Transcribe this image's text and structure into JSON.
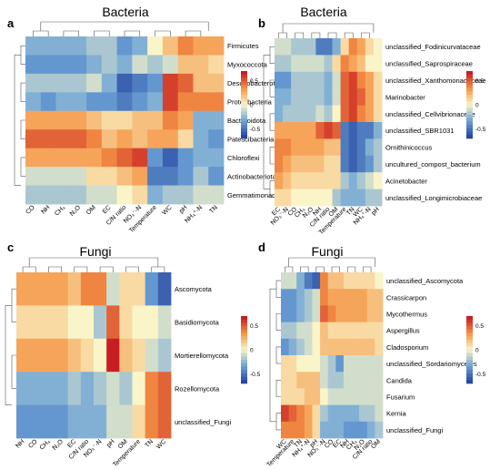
{
  "chart_data": [
    {
      "type": "heatmap",
      "panel": "a",
      "title": "Bacteria",
      "rows": [
        "Firmicutes",
        "Myxococcota",
        "Desulfobacterota",
        "Proteobacteria",
        "Bacteroidota",
        "Patescibacteria",
        "Chloroflexi",
        "Actinobacteriota",
        "Gemmatimonadota"
      ],
      "columns": [
        "CO",
        "NH",
        "CH₄",
        "N₂O",
        "OM",
        "EC",
        "C/N ratio",
        "NO₃⁻-N",
        "Temperature",
        "WC",
        "pH",
        "NH₄⁺-N",
        "TN"
      ],
      "values": [
        [
          -0.3,
          -0.3,
          -0.3,
          -0.3,
          -0.2,
          -0.2,
          -0.4,
          -0.3,
          0.0,
          0.2,
          0.4,
          0.3,
          0.3
        ],
        [
          -0.4,
          -0.4,
          -0.4,
          -0.4,
          -0.3,
          -0.2,
          -0.3,
          -0.1,
          -0.2,
          -0.1,
          0.2,
          0.2,
          0.1
        ],
        [
          -0.2,
          -0.2,
          -0.2,
          -0.2,
          -0.1,
          -0.3,
          -0.6,
          -0.5,
          -0.4,
          0.6,
          0.5,
          0.2,
          0.2
        ],
        [
          -0.3,
          -0.4,
          -0.3,
          -0.3,
          -0.4,
          -0.4,
          -0.5,
          -0.4,
          -0.3,
          0.6,
          0.4,
          0.4,
          0.4
        ],
        [
          0.3,
          0.3,
          0.3,
          0.3,
          0.2,
          0.1,
          0.1,
          0.2,
          0.2,
          0.4,
          0.3,
          -0.3,
          -0.3
        ],
        [
          0.5,
          0.5,
          0.5,
          0.5,
          0.4,
          0.2,
          0.3,
          0.2,
          0.3,
          0.3,
          0.1,
          -0.3,
          -0.4
        ],
        [
          0.3,
          0.3,
          0.3,
          0.3,
          0.3,
          0.4,
          0.5,
          0.6,
          -0.4,
          -0.6,
          -0.4,
          -0.3,
          -0.3
        ],
        [
          -0.1,
          -0.1,
          -0.1,
          -0.1,
          0.1,
          0.1,
          0.2,
          0.3,
          -0.5,
          -0.5,
          -0.4,
          -0.2,
          -0.4
        ],
        [
          -0.2,
          -0.2,
          -0.2,
          -0.2,
          -0.1,
          -0.1,
          0.0,
          0.1,
          -0.3,
          -0.2,
          -0.2,
          -0.1,
          -0.1
        ]
      ],
      "colorbar_ticks": [
        0.5,
        0,
        -0.5
      ]
    },
    {
      "type": "heatmap",
      "panel": "b",
      "title": "Bacteria",
      "rows": [
        "unclassified_Fodinicurvataceae",
        "unclassified_Saprospiraceae",
        "unclassified_Xanthomonadaceae",
        "Marinobacter",
        "unclassified_Cellvibrionaceae",
        "unclassified_SBR1031",
        "Ornithinicoccus",
        "uncultured_compost_bacterium",
        "Acinetobacter",
        "unclassified_Longimicrobiaceae"
      ],
      "columns": [
        "EC",
        "NO₃⁻-N",
        "CO",
        "CH₄",
        "N₂O",
        "NH",
        "C/N ratio",
        "OM",
        "Temperature",
        "TN",
        "WC",
        "NH₄⁺-N",
        "pH"
      ],
      "values": [
        [
          -0.1,
          -0.1,
          -0.2,
          -0.2,
          -0.2,
          -0.5,
          -0.5,
          -0.3,
          0.1,
          0.4,
          0.3,
          0.1,
          0.0
        ],
        [
          -0.2,
          -0.2,
          -0.1,
          -0.1,
          -0.1,
          -0.1,
          -0.2,
          0.1,
          0.4,
          0.3,
          0.2,
          0.0,
          0.0
        ],
        [
          -0.4,
          -0.4,
          -0.2,
          -0.2,
          -0.2,
          -0.2,
          -0.3,
          -0.1,
          0.5,
          0.6,
          0.4,
          0.3,
          0.1
        ],
        [
          -0.3,
          -0.3,
          -0.2,
          -0.2,
          -0.2,
          -0.2,
          -0.3,
          -0.1,
          0.5,
          0.6,
          0.5,
          0.3,
          0.1
        ],
        [
          -0.3,
          -0.2,
          -0.2,
          -0.2,
          -0.2,
          -0.1,
          -0.2,
          0.0,
          0.5,
          0.6,
          0.4,
          0.3,
          0.1
        ],
        [
          0.3,
          0.3,
          0.3,
          0.3,
          0.3,
          0.5,
          0.6,
          0.5,
          -0.5,
          -0.6,
          -0.5,
          -0.5,
          -0.3
        ],
        [
          0.4,
          0.4,
          0.3,
          0.3,
          0.3,
          0.3,
          0.2,
          0.2,
          -0.5,
          -0.6,
          -0.5,
          -0.3,
          -0.2
        ],
        [
          0.4,
          0.3,
          0.2,
          0.2,
          0.2,
          0.2,
          0.1,
          0.1,
          -0.5,
          -0.6,
          -0.5,
          -0.4,
          -0.2
        ],
        [
          0.3,
          0.2,
          0.1,
          0.1,
          0.1,
          0.1,
          0.1,
          0.1,
          -0.2,
          -0.3,
          -0.2,
          -0.1,
          0.0
        ],
        [
          0.1,
          0.1,
          0.0,
          0.0,
          0.0,
          0.0,
          0.0,
          -0.2,
          -0.3,
          -0.3,
          -0.3,
          -0.2,
          -0.2
        ]
      ],
      "colorbar_ticks": [
        0.5,
        0,
        -0.5
      ]
    },
    {
      "type": "heatmap",
      "panel": "c",
      "title": "Fungi",
      "rows": [
        "Ascomycota",
        "Basidiomycota",
        "Mortierellomycota",
        "Rozellomycota",
        "unclassified_Fungi"
      ],
      "columns": [
        "NH",
        "CO",
        "CH₄",
        "N₂O",
        "EC",
        "C/N ratio",
        "NO₃⁻-N",
        "pH",
        "OM",
        "Temperature",
        "TN",
        "WC"
      ],
      "values": [
        [
          0.3,
          0.3,
          0.3,
          0.3,
          0.2,
          0.4,
          0.4,
          -0.1,
          0.1,
          0.1,
          -0.4,
          -0.6
        ],
        [
          0.1,
          0.1,
          0.1,
          0.1,
          0.0,
          0.0,
          -0.2,
          0.5,
          0.1,
          0.0,
          0.0,
          -0.1
        ],
        [
          0.3,
          0.3,
          0.3,
          0.3,
          0.2,
          0.1,
          0.0,
          0.7,
          0.2,
          0.1,
          -0.1,
          -0.2
        ],
        [
          -0.3,
          -0.3,
          -0.3,
          -0.3,
          -0.2,
          -0.3,
          -0.2,
          -0.1,
          -0.2,
          0.0,
          0.4,
          0.5
        ],
        [
          -0.4,
          -0.4,
          -0.4,
          -0.4,
          -0.3,
          -0.3,
          -0.3,
          -0.1,
          -0.1,
          0.1,
          0.4,
          0.5
        ]
      ],
      "colorbar_ticks": [
        0.5,
        0,
        -0.5
      ]
    },
    {
      "type": "heatmap",
      "panel": "d",
      "title": "Fungi",
      "rows": [
        "unclassified_Ascomycota",
        "Crassicarpon",
        "Mycothermus",
        "Aspergillus",
        "Cladosporium",
        "unclassified_Sordariomycetes",
        "Candida",
        "Fusarium",
        "Kernia",
        "unclassified_Fungi"
      ],
      "columns": [
        "WC",
        "Temperature",
        "TN",
        "NH₄⁺-N",
        "pH",
        "NO₃⁻-N",
        "CO",
        "EC",
        "NH",
        "CH₄",
        "N₂O",
        "C/N ratio",
        "OM"
      ],
      "values": [
        [
          -0.1,
          -0.1,
          -0.3,
          -0.5,
          -0.6,
          0.4,
          0.2,
          0.2,
          0.1,
          0.1,
          0.1,
          0.1,
          0.0
        ],
        [
          -0.4,
          -0.4,
          -0.3,
          -0.2,
          -0.1,
          0.4,
          0.3,
          0.3,
          0.3,
          0.3,
          0.3,
          0.2,
          0.2
        ],
        [
          -0.4,
          -0.4,
          -0.3,
          -0.2,
          -0.1,
          0.5,
          0.4,
          0.3,
          0.3,
          0.3,
          0.3,
          0.2,
          0.2
        ],
        [
          -0.2,
          -0.2,
          -0.1,
          -0.1,
          0.0,
          0.2,
          0.1,
          0.1,
          0.1,
          0.1,
          0.1,
          0.1,
          0.1
        ],
        [
          -0.4,
          -0.3,
          -0.2,
          -0.1,
          0.0,
          0.2,
          0.2,
          0.2,
          0.2,
          0.2,
          0.2,
          0.2,
          0.1
        ],
        [
          0.1,
          0.1,
          0.0,
          0.0,
          0.0,
          -0.1,
          -0.2,
          -0.4,
          -0.1,
          -0.1,
          -0.1,
          -0.1,
          -0.1
        ],
        [
          0.1,
          0.1,
          0.2,
          0.2,
          0.2,
          -0.1,
          -0.2,
          -0.2,
          -0.1,
          -0.1,
          -0.1,
          -0.1,
          -0.1
        ],
        [
          0.1,
          0.1,
          0.1,
          0.2,
          0.2,
          0.0,
          -0.1,
          -0.1,
          -0.1,
          -0.1,
          -0.1,
          -0.1,
          -0.1
        ],
        [
          0.6,
          0.5,
          0.4,
          0.3,
          0.1,
          -0.2,
          -0.3,
          -0.3,
          -0.3,
          -0.3,
          -0.2,
          -0.2,
          -0.1
        ],
        [
          0.4,
          0.4,
          0.4,
          0.3,
          0.1,
          -0.3,
          -0.3,
          -0.3,
          -0.4,
          -0.4,
          -0.4,
          -0.3,
          -0.2
        ]
      ],
      "colorbar_ticks": [
        0.5,
        0,
        -0.5
      ]
    }
  ]
}
